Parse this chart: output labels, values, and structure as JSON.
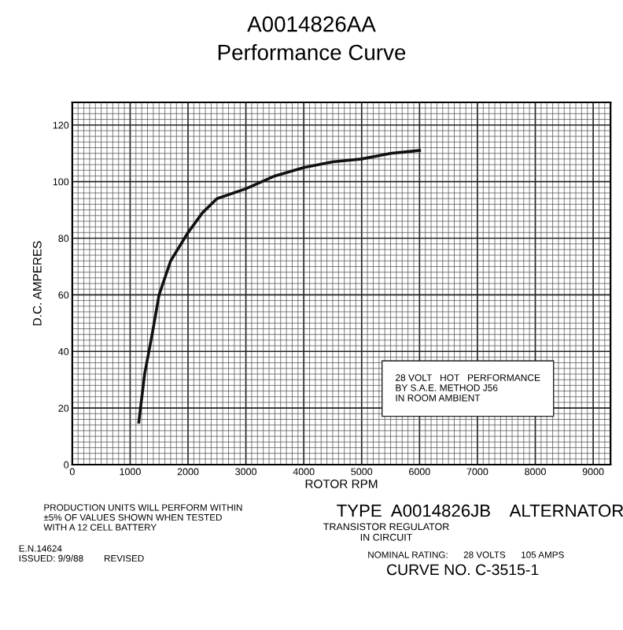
{
  "chart_data": {
    "type": "line",
    "title": "A0014826AA",
    "subtitle": "Performance Curve",
    "xlabel": "ROTOR RPM",
    "ylabel": "D.C. AMPERES",
    "x": [
      1150,
      1250,
      1380,
      1500,
      1700,
      2000,
      2250,
      2500,
      3000,
      3500,
      4000,
      4500,
      5000,
      5500,
      6000
    ],
    "series": [
      {
        "color": "#111111",
        "values": [
          15,
          32,
          46,
          60,
          72,
          82,
          89,
          94,
          97.5,
          102,
          105,
          107,
          108,
          110,
          111
        ]
      }
    ],
    "xlim": [
      0,
      9300
    ],
    "xticks": [
      0,
      1000,
      2000,
      3000,
      4000,
      5000,
      6000,
      7000,
      8000,
      9000
    ],
    "ylim": [
      0,
      128
    ],
    "yticks": [
      0,
      20,
      40,
      60,
      80,
      100,
      120
    ],
    "grid": true,
    "annotations": [
      "28 VOLT   HOT   PERFORMANCE\nBY S.A.E. METHOD J56\nIN ROOM AMBIENT",
      "PRODUCTION UNITS WILL PERFORM WITHIN\n±5% OF VALUES SHOWN WHEN TESTED\nWITH A 12 CELL BATTERY",
      "E.N.14624\nISSUED: 9/9/88        REVISED",
      "TYPE  A0014826JB    ALTERNATOR",
      "TRANSISTOR REGULATOR\nIN CIRCUIT",
      "NOMINAL RATING:      28 VOLTS      105 AMPS",
      "CURVE NO. C-3515-1"
    ]
  }
}
